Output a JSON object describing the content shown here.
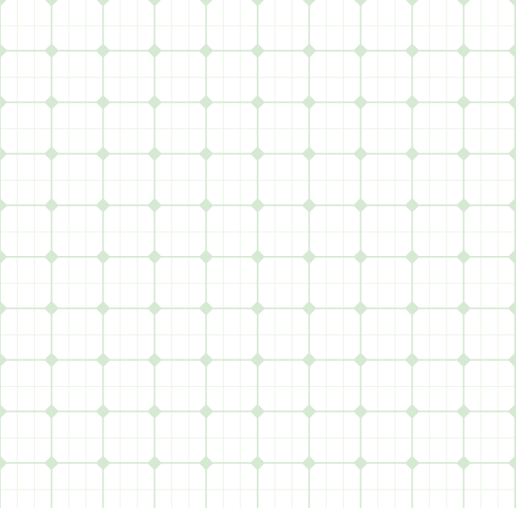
{
  "pattern": {
    "background_color": "#ffffff",
    "major_line_color": "#d6e9d3",
    "minor_line_color": "#e9f4e5",
    "diamond_color": "#d6e9d3",
    "icon": "diamond-grid-pattern"
  }
}
